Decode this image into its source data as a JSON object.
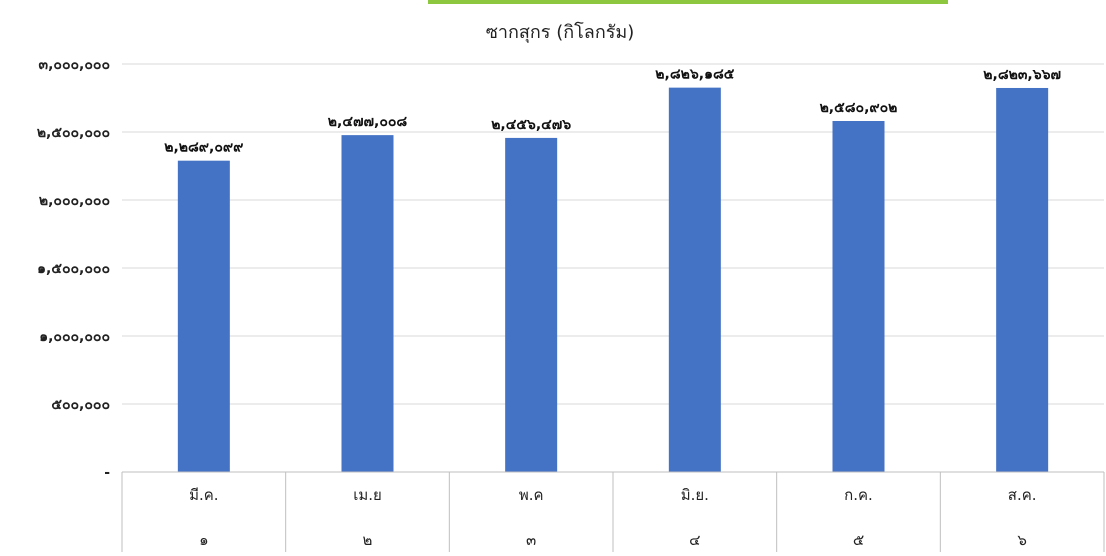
{
  "chart_data": {
    "type": "bar",
    "title": "ซากสุกร (กิโลกรัม)",
    "categories": [
      "มี.ค.",
      "เม.ย",
      "พ.ค",
      "มิ.ย.",
      "ก.ค.",
      "ส.ค."
    ],
    "category_numbers": [
      "๑",
      "๒",
      "๓",
      "๔",
      "๕",
      "๖"
    ],
    "values": [
      2289099,
      2477008,
      2456476,
      2826185,
      2580902,
      2823667
    ],
    "value_labels": [
      "๒,๒๘๙,๐๙๙",
      "๒,๔๗๗,๐๐๘",
      "๒,๔๕๖,๔๗๖",
      "๒,๘๒๖,๑๘๕",
      "๒,๕๘๐,๙๐๒",
      "๒,๘๒๓,๖๖๗"
    ],
    "ylim": [
      0,
      3000000
    ],
    "yticks": [
      0,
      500000,
      1000000,
      1500000,
      2000000,
      2500000,
      3000000
    ],
    "ytick_labels": [
      "-",
      "๕๐๐,๐๐๐",
      "๑,๐๐๐,๐๐๐",
      "๑,๕๐๐,๐๐๐",
      "๒,๐๐๐,๐๐๐",
      "๒,๕๐๐,๐๐๐",
      "๓,๐๐๐,๐๐๐"
    ],
    "grid": true,
    "bar_color": "#4472C4",
    "accent_color": "#8DC63F",
    "legend": "none"
  }
}
